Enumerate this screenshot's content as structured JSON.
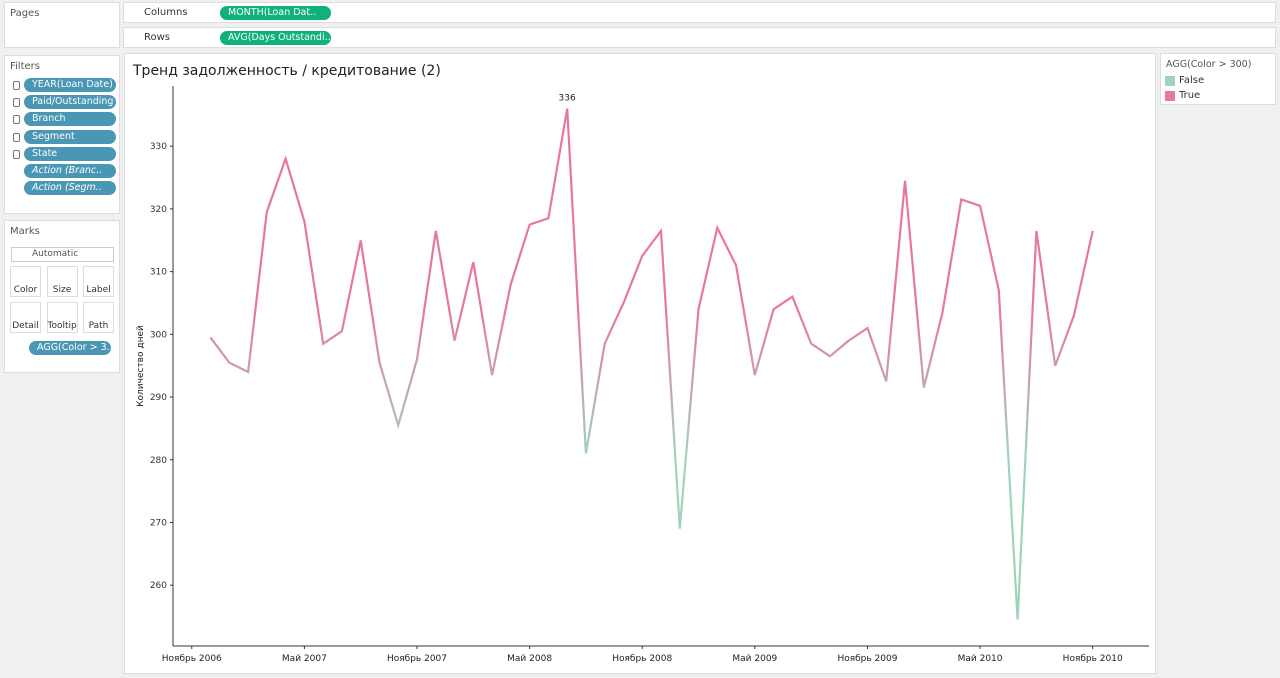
{
  "ui": {
    "pages_title": "Pages",
    "columns_label": "Columns",
    "columns_pill": "MONTH(Loan Dat..",
    "rows_label": "Rows",
    "rows_pill": "AVG(Days Outstandi..",
    "filters_title": "Filters",
    "filters": [
      "YEAR(Loan Date)",
      "Paid/Outstanding",
      "Branch",
      "Segment",
      "State",
      "Action (Branc..",
      "Action (Segm.."
    ],
    "marks_title": "Marks",
    "mark_type": "Automatic",
    "mark_buttons": [
      "Color",
      "Size",
      "Label",
      "Detail",
      "Tooltip",
      "Path"
    ],
    "marks_pill": "AGG(Color > 3..",
    "legend_title": "AGG(Color > 300)",
    "legend": [
      {
        "label": "False",
        "color": "#9fd4b9"
      },
      {
        "label": "True",
        "color": "#e8789b"
      }
    ]
  },
  "chart_data": {
    "type": "line",
    "title": "Тренд задолженность / кредитование (2)",
    "y_label": "Количество дней",
    "x": [
      "2006-12",
      "2007-01",
      "2007-02",
      "2007-03",
      "2007-04",
      "2007-05",
      "2007-06",
      "2007-07",
      "2007-08",
      "2007-09",
      "2007-10",
      "2007-11",
      "2007-12",
      "2008-01",
      "2008-02",
      "2008-03",
      "2008-04",
      "2008-05",
      "2008-06",
      "2008-07",
      "2008-08",
      "2008-09",
      "2008-10",
      "2008-11",
      "2008-12",
      "2009-01",
      "2009-02",
      "2009-03",
      "2009-04",
      "2009-05",
      "2009-06",
      "2009-07",
      "2009-08",
      "2009-09",
      "2009-10",
      "2009-11",
      "2009-12",
      "2010-01",
      "2010-02",
      "2010-03",
      "2010-04",
      "2010-05",
      "2010-06",
      "2010-07",
      "2010-08",
      "2010-09",
      "2010-10",
      "2010-11"
    ],
    "values": [
      299.5,
      295.5,
      294,
      319.5,
      328,
      318,
      298.5,
      300.5,
      315,
      295.5,
      285.5,
      296,
      316.5,
      299,
      311.5,
      293.5,
      308,
      317.5,
      318.5,
      336,
      281,
      298.5,
      305,
      312.5,
      316.5,
      269,
      304,
      317,
      311,
      293.5,
      304,
      306,
      298.5,
      296.5,
      299,
      301,
      292.5,
      324.5,
      291.5,
      303.5,
      321.5,
      320.5,
      307,
      254.5,
      316.5,
      295,
      303,
      316.5
    ],
    "ylim": [
      250.3,
      339.6
    ],
    "yticks": [
      260,
      270,
      280,
      290,
      300,
      310,
      320,
      330
    ],
    "xlim": [
      "2006-10",
      "2011-02"
    ],
    "xticks": [
      {
        "value": "2006-11",
        "label": "Ноябрь 2006"
      },
      {
        "value": "2007-05",
        "label": "Май 2007"
      },
      {
        "value": "2007-11",
        "label": "Ноябрь 2007"
      },
      {
        "value": "2008-05",
        "label": "Май 2008"
      },
      {
        "value": "2008-11",
        "label": "Ноябрь 2008"
      },
      {
        "value": "2009-05",
        "label": "Май 2009"
      },
      {
        "value": "2009-11",
        "label": "Ноябрь 2009"
      },
      {
        "value": "2010-05",
        "label": "Май 2010"
      },
      {
        "value": "2010-11",
        "label": "Ноябрь 2010"
      }
    ],
    "label_max": true
  }
}
